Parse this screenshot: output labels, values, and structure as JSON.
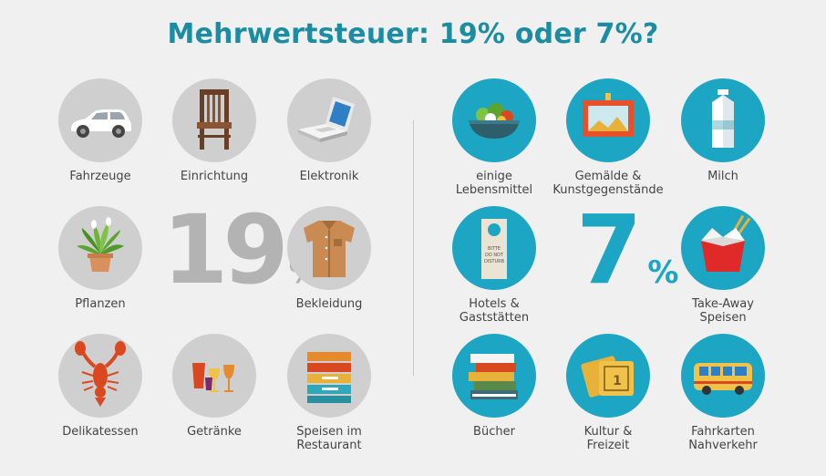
{
  "title": "Mehrwertsteuer: 19% oder 7%?",
  "colors": {
    "title": "#1a8da3",
    "grey_circle": "#cfcfcf",
    "teal_circle": "#1da6c4",
    "big_grey": "#b3b3b3",
    "big_teal": "#1da6c4"
  },
  "left": {
    "percent_number": "19",
    "percent_sign": "%",
    "items": [
      {
        "label": "Fahrzeuge",
        "icon": "car-icon"
      },
      {
        "label": "Einrichtung",
        "icon": "chair-icon"
      },
      {
        "label": "Elektronik",
        "icon": "laptop-icon"
      },
      {
        "label": "Pflanzen",
        "icon": "plant-icon"
      },
      {
        "label": "Bekleidung",
        "icon": "shirt-icon"
      },
      {
        "label": "Delikatessen",
        "icon": "lobster-icon"
      },
      {
        "label": "Getränke",
        "icon": "drinks-icon"
      },
      {
        "label": "Speisen im\nRestaurant",
        "icon": "plates-icon"
      }
    ]
  },
  "right": {
    "percent_number": "7",
    "percent_sign": "%",
    "items": [
      {
        "label": "einige\nLebensmittel",
        "icon": "salad-bowl-icon"
      },
      {
        "label": "Gemälde &\nKunstgegenstände",
        "icon": "painting-icon"
      },
      {
        "label": "Milch",
        "icon": "milk-carton-icon"
      },
      {
        "label": "Hotels &\nGaststätten",
        "icon": "door-hanger-icon",
        "sign_text": "BITTE\nDO NOT\nDISTURB"
      },
      {
        "label": "Take-Away\nSpeisen",
        "icon": "takeaway-box-icon"
      },
      {
        "label": "Bücher",
        "icon": "books-icon"
      },
      {
        "label": "Kultur &\nFreizeit",
        "icon": "tickets-icon"
      },
      {
        "label": "Fahrkarten\nNahverkehr",
        "icon": "bus-icon"
      }
    ]
  }
}
